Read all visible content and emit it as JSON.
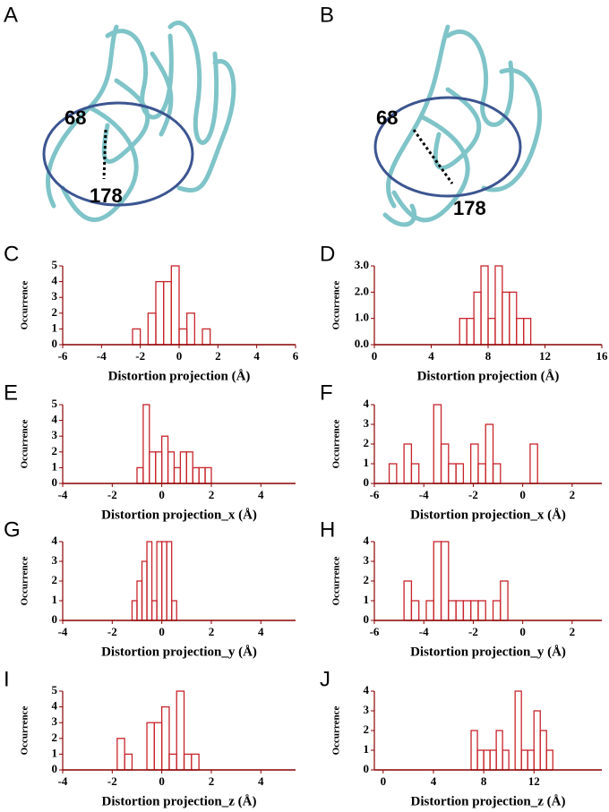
{
  "structures": [
    {
      "label": "A",
      "residues": [
        "68",
        "178"
      ]
    },
    {
      "label": "B",
      "residues": [
        "68",
        "178"
      ]
    }
  ],
  "chart_data": [
    {
      "label": "C",
      "type": "histogram",
      "ylabel": "Occurrence",
      "xlabel": "Distortion projection (Å)",
      "color": "#c8242b",
      "bins": [
        -2.4,
        -2.0,
        -1.6,
        -1.2,
        -0.8,
        -0.4,
        0.0,
        0.4,
        0.8,
        1.2,
        1.6
      ],
      "values": [
        1,
        0,
        2,
        4,
        4,
        5,
        1,
        2,
        0,
        1
      ],
      "xlim": [
        -6,
        6
      ],
      "xticks": [
        -6,
        -4,
        -2,
        0,
        2,
        4,
        6
      ],
      "ylim": [
        0,
        5
      ],
      "yticks": [
        0,
        1,
        2,
        3,
        4,
        5
      ]
    },
    {
      "label": "D",
      "type": "histogram",
      "ylabel": "Occurrence",
      "xlabel": "Distortion projection (Å)",
      "color": "#c8242b",
      "bins": [
        6.0,
        6.5,
        7.0,
        7.5,
        8.0,
        8.5,
        9.0,
        9.5,
        10.0,
        10.5,
        11.0
      ],
      "values": [
        1,
        1,
        2,
        3,
        1,
        3,
        2,
        2,
        1,
        1
      ],
      "xlim": [
        0,
        16
      ],
      "xticks": [
        0,
        4,
        8,
        12,
        16
      ],
      "ylim": [
        0,
        3
      ],
      "yticks": [
        {
          "value": 0,
          "label": "0.0"
        },
        {
          "value": 1,
          "label": "1.0"
        },
        {
          "value": 2,
          "label": "2.0"
        },
        {
          "value": 3,
          "label": "3.0"
        }
      ]
    },
    {
      "label": "E",
      "type": "histogram",
      "ylabel": "Occurrence",
      "xlabel": "Distortion projection_x (Å)",
      "color": "#c8242b",
      "bins": [
        -1.0,
        -0.75,
        -0.5,
        -0.25,
        0.0,
        0.25,
        0.5,
        0.75,
        1.0,
        1.25,
        1.5,
        1.75,
        2.0
      ],
      "values": [
        1,
        5,
        2,
        2,
        3,
        2,
        1,
        2,
        2,
        1,
        1,
        1
      ],
      "xlim": [
        -4,
        5.4
      ],
      "xticks": [
        -4,
        -2,
        0,
        2,
        4
      ],
      "ylim": [
        0,
        5
      ],
      "yticks": [
        0,
        1,
        2,
        3,
        4,
        5
      ]
    },
    {
      "label": "F",
      "type": "histogram",
      "ylabel": "Occurrence",
      "xlabel": "Distortion projection_x (Å)",
      "color": "#c8242b",
      "bins": [
        -5.4,
        -5.1,
        -4.8,
        -4.5,
        -4.2,
        -3.9,
        -3.6,
        -3.3,
        -3.0,
        -2.7,
        -2.4,
        -2.1,
        -1.8,
        -1.5,
        -1.2,
        -0.9,
        -0.6,
        -0.3,
        0.0,
        0.3,
        0.6
      ],
      "values": [
        1,
        0,
        2,
        1,
        0,
        0,
        4,
        2,
        1,
        1,
        0,
        2,
        1,
        3,
        1,
        0,
        0,
        0,
        0,
        2
      ],
      "xlim": [
        -6,
        3.2
      ],
      "xticks": [
        -6,
        -4,
        -2,
        0,
        2
      ],
      "ylim": [
        0,
        4
      ],
      "yticks": [
        0,
        1,
        2,
        3,
        4
      ]
    },
    {
      "label": "G",
      "type": "histogram",
      "ylabel": "Occurrence",
      "xlabel": "Distortion projection_y (Å)",
      "color": "#c8242b",
      "bins": [
        -1.2,
        -1.0,
        -0.8,
        -0.6,
        -0.4,
        -0.2,
        0.0,
        0.2,
        0.4,
        0.6
      ],
      "values": [
        1,
        2,
        3,
        4,
        1,
        4,
        4,
        4,
        1
      ],
      "xlim": [
        -4,
        5.4
      ],
      "xticks": [
        -4,
        -2,
        0,
        2,
        4
      ],
      "ylim": [
        0,
        4
      ],
      "yticks": [
        0,
        1,
        2,
        3,
        4
      ]
    },
    {
      "label": "H",
      "type": "histogram",
      "ylabel": "Occurrence",
      "xlabel": "Distortion projection_y (Å)",
      "color": "#c8242b",
      "bins": [
        -4.8,
        -4.5,
        -4.2,
        -3.9,
        -3.6,
        -3.3,
        -3.0,
        -2.7,
        -2.4,
        -2.1,
        -1.8,
        -1.5,
        -1.2,
        -0.9,
        -0.6
      ],
      "values": [
        2,
        1,
        0,
        1,
        4,
        4,
        1,
        1,
        1,
        1,
        1,
        0,
        1,
        2
      ],
      "xlim": [
        -6,
        3.2
      ],
      "xticks": [
        -6,
        -4,
        -2,
        0,
        2
      ],
      "ylim": [
        0,
        4
      ],
      "yticks": [
        0,
        1,
        2,
        3,
        4
      ]
    },
    {
      "label": "I",
      "type": "histogram",
      "ylabel": "Occurrence",
      "xlabel": "Distortion projection_z (Å)",
      "color": "#c8242b",
      "bins": [
        -1.8,
        -1.5,
        -1.2,
        -0.9,
        -0.6,
        -0.3,
        0.0,
        0.3,
        0.6,
        0.9,
        1.2,
        1.5
      ],
      "values": [
        2,
        1,
        0,
        0,
        3,
        3,
        4,
        1,
        5,
        1,
        1
      ],
      "xlim": [
        -4,
        5.4
      ],
      "xticks": [
        -4,
        -2,
        0,
        2,
        4
      ],
      "ylim": [
        0,
        5
      ],
      "yticks": [
        0,
        1,
        2,
        3,
        4,
        5
      ]
    },
    {
      "label": "J",
      "type": "histogram",
      "ylabel": "Occurrence",
      "xlabel": "Distortion projection_z (Å)",
      "color": "#c8242b",
      "bins": [
        7.0,
        7.5,
        8.0,
        8.5,
        9.0,
        9.5,
        10.0,
        10.5,
        11.0,
        11.5,
        12.0,
        12.5,
        13.0,
        13.5
      ],
      "values": [
        2,
        1,
        1,
        1,
        2,
        1,
        0,
        4,
        1,
        1,
        3,
        2,
        1
      ],
      "xlim": [
        -0.7,
        17.4
      ],
      "xticks": [
        0,
        4,
        8,
        12
      ],
      "ylim": [
        0,
        4
      ],
      "yticks": [
        0,
        1,
        2,
        3,
        4
      ]
    }
  ]
}
